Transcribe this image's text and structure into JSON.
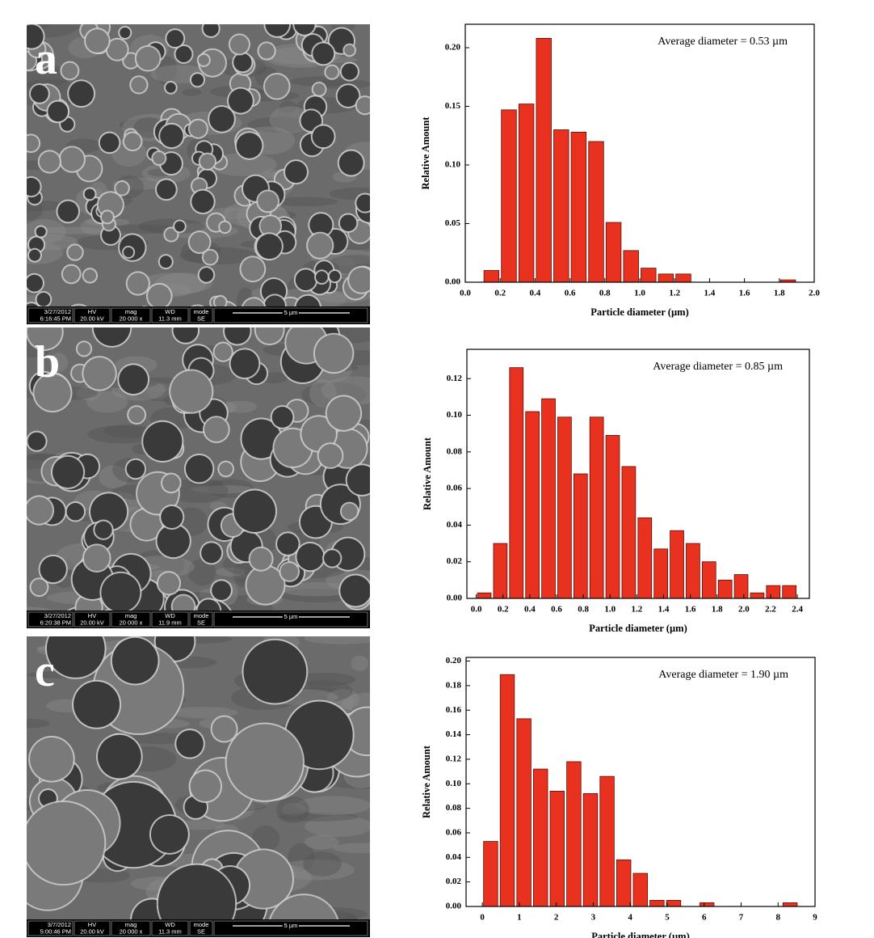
{
  "images": [
    {
      "label": "a",
      "date": "3/27/2012",
      "time": "6:16:45 PM",
      "hv": "20.00 kV",
      "mag": "20 000 x",
      "wd": "11.3 mm",
      "mode": "SE",
      "scale": "5 µm"
    },
    {
      "label": "b",
      "date": "3/27/2012",
      "time": "6:20:38 PM",
      "hv": "20.00 kV",
      "mag": "20 000 x",
      "wd": "11.9 mm",
      "mode": "SE",
      "scale": "5 µm"
    },
    {
      "label": "c",
      "date": "3/7/2012",
      "time": "5:00:46 PM",
      "hv": "20.00 kV",
      "mag": "20 000 x",
      "wd": "11.3 mm",
      "mode": "SE",
      "scale": "5 µm"
    }
  ],
  "info_headers": {
    "hv": "HV",
    "mag": "mag",
    "wd": "WD",
    "mode": "mode"
  },
  "chart_data": [
    {
      "type": "histogram",
      "annotation": "Average diameter = 0.53 µm",
      "xlabel": "Particle diameter (µm)",
      "ylabel": "Relative Amount",
      "color": "#e8321f",
      "bins": [
        0.1,
        0.2,
        0.3,
        0.4,
        0.5,
        0.6,
        0.7,
        0.8,
        0.9,
        1.0,
        1.1,
        1.2,
        1.3,
        1.4,
        1.5,
        1.6,
        1.7,
        1.8,
        1.9
      ],
      "values": [
        0.01,
        0.147,
        0.152,
        0.208,
        0.13,
        0.128,
        0.12,
        0.051,
        0.027,
        0.012,
        0.007,
        0.007,
        0,
        0,
        0,
        0,
        0,
        0.002
      ],
      "xlim": [
        0,
        2
      ],
      "xticks": [
        {
          "value": 0,
          "label": "0.0"
        },
        0.2,
        0.4,
        0.6,
        0.8,
        {
          "value": 1,
          "label": "1.0"
        },
        1.2,
        1.4,
        1.6,
        1.8,
        {
          "value": 2,
          "label": "2.0"
        }
      ],
      "ylim": [
        0,
        0.22
      ],
      "yticks": [
        {
          "value": 0,
          "label": "0.00"
        },
        0.05,
        {
          "value": 0.1,
          "label": "0.10"
        },
        0.15,
        {
          "value": 0.2,
          "label": "0.20"
        }
      ]
    },
    {
      "type": "histogram",
      "annotation": "Average diameter = 0.85 µm",
      "xlabel": "Particle diameter (µm)",
      "ylabel": "Relative Amount",
      "color": "#e8321f",
      "bins": [
        0,
        0.12,
        0.24,
        0.36,
        0.48,
        0.6,
        0.72,
        0.84,
        0.96,
        1.08,
        1.2,
        1.32,
        1.44,
        1.56,
        1.68,
        1.8,
        1.92,
        2.04,
        2.16,
        2.28,
        2.4
      ],
      "values": [
        0.003,
        0.03,
        0.126,
        0.102,
        0.109,
        0.099,
        0.068,
        0.099,
        0.089,
        0.072,
        0.044,
        0.027,
        0.037,
        0.03,
        0.02,
        0.01,
        0.013,
        0.003,
        0.007,
        0.007
      ],
      "xlim": [
        -0.07,
        2.49
      ],
      "xticks": [
        {
          "value": 0,
          "label": "0.0"
        },
        0.2,
        0.4,
        0.6,
        0.8,
        {
          "value": 1,
          "label": "1.0"
        },
        1.2,
        1.4,
        1.6,
        1.8,
        {
          "value": 2,
          "label": "2.0"
        },
        2.2,
        2.4
      ],
      "ylim": [
        0,
        0.136
      ],
      "yticks": [
        {
          "value": 0,
          "label": "0.00"
        },
        0.02,
        0.04,
        0.06,
        0.08,
        {
          "value": 0.1,
          "label": "0.10"
        },
        0.12
      ]
    },
    {
      "type": "histogram",
      "annotation": "Average diameter = 1.90 µm",
      "xlabel": "Particle diameter (µm)",
      "ylabel": "Relative Amount",
      "color": "#e8321f",
      "bins": [
        0,
        0.45,
        0.9,
        1.35,
        1.8,
        2.25,
        2.7,
        3.15,
        3.6,
        4.05,
        4.5,
        4.95,
        5.4,
        5.85,
        6.3,
        6.75,
        7.2,
        7.65,
        8.1,
        8.55
      ],
      "values": [
        0.053,
        0.189,
        0.153,
        0.112,
        0.094,
        0.118,
        0.092,
        0.106,
        0.038,
        0.027,
        0.005,
        0.005,
        0,
        0.003,
        0,
        0,
        0,
        0,
        0.003
      ],
      "xlim": [
        -0.44,
        9
      ],
      "xticks": [
        0,
        1,
        2,
        3,
        4,
        5,
        6,
        7,
        8,
        9
      ],
      "ylim": [
        0,
        0.203
      ],
      "yticks": [
        {
          "value": 0,
          "label": "0.00"
        },
        0.02,
        0.04,
        0.06,
        0.08,
        {
          "value": 0.1,
          "label": "0.10"
        },
        0.12,
        0.14,
        0.16,
        0.18,
        {
          "value": 0.2,
          "label": "0.20"
        }
      ]
    }
  ]
}
